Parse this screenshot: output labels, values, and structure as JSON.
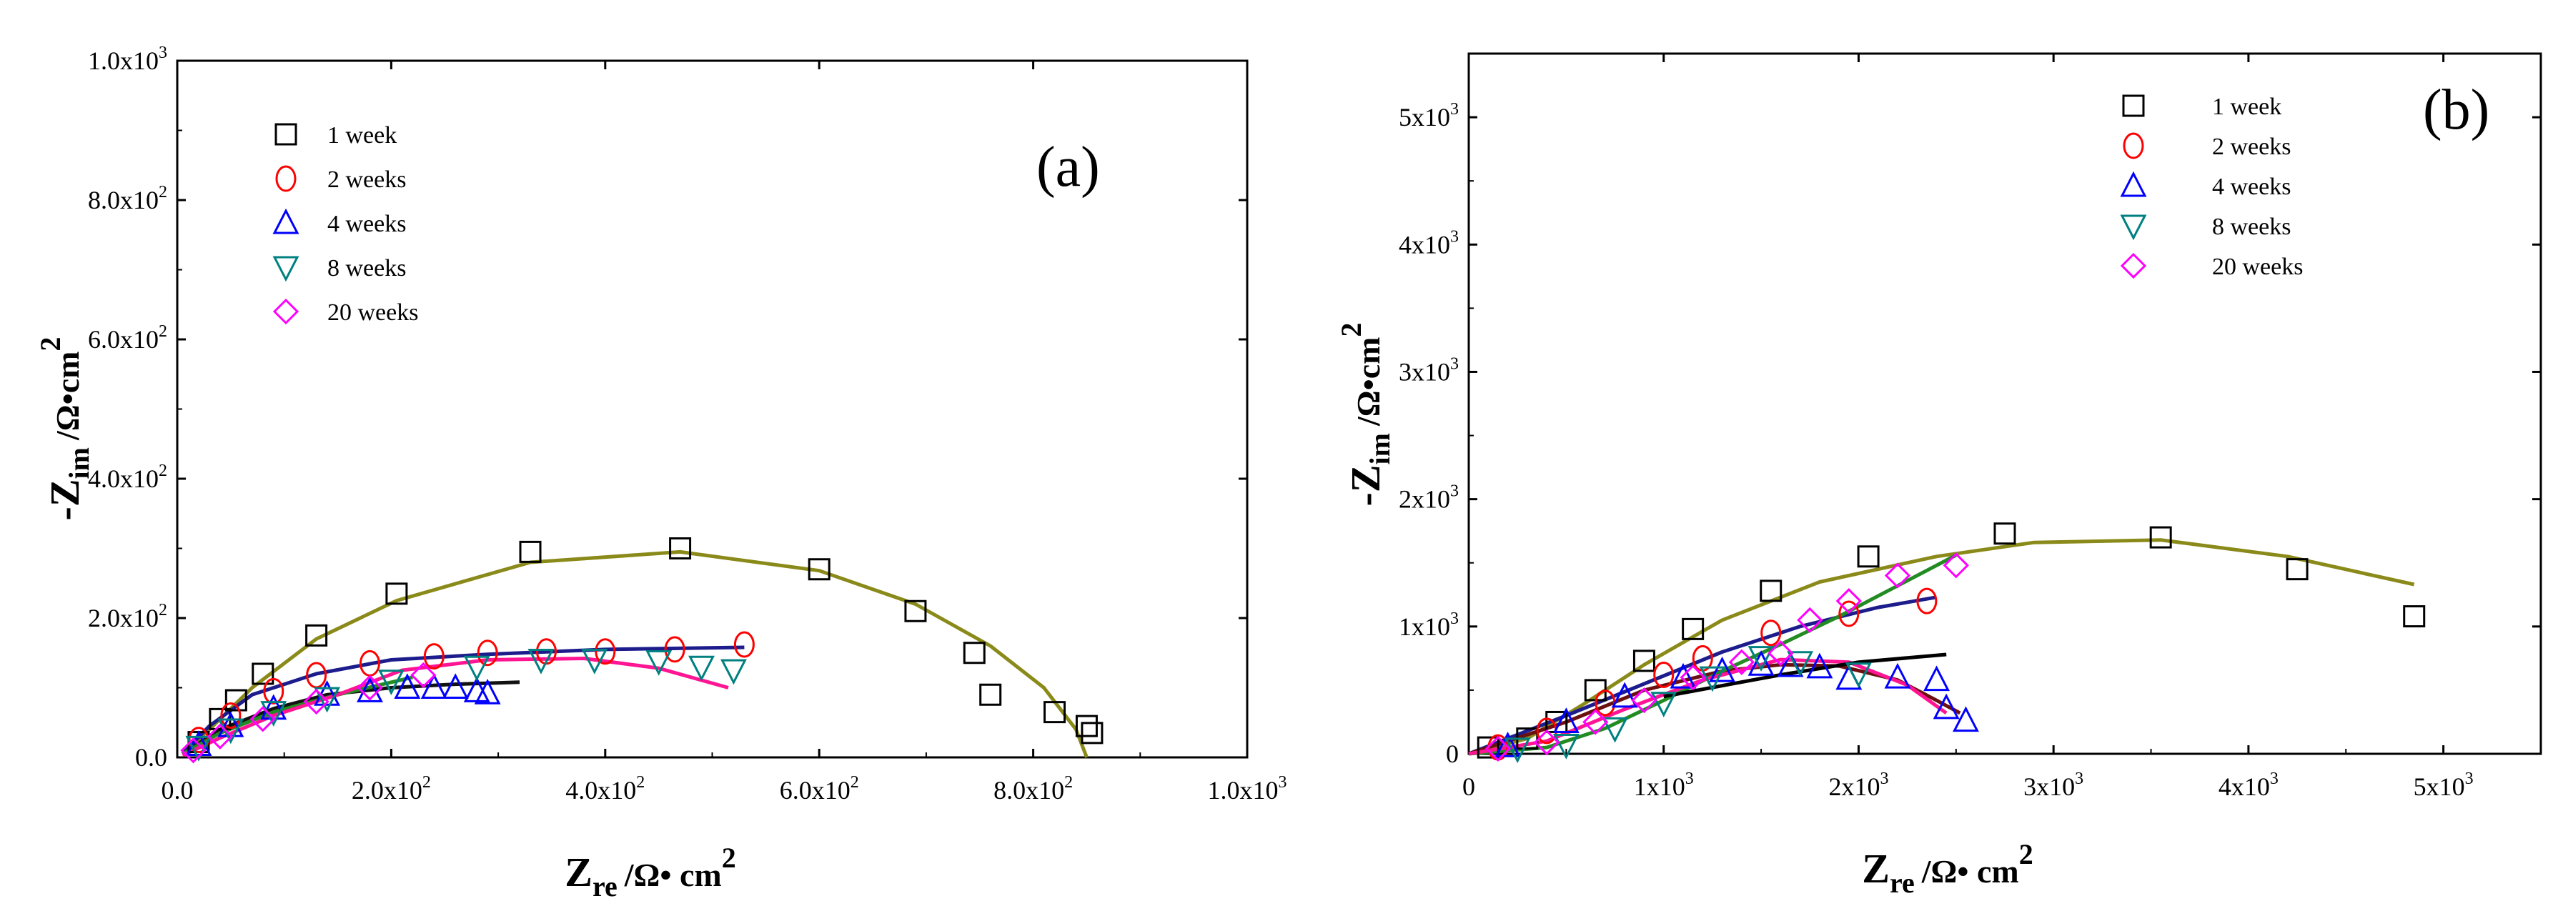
{
  "chart_data": [
    {
      "type": "scatter",
      "panel_label": "(a)",
      "xlabel": {
        "main": "Z",
        "sub": "re",
        "unit": "/Ω• cm",
        "sup": "2"
      },
      "ylabel": {
        "main": "-Z",
        "sub": "im",
        "unit": "/Ω•cm",
        "sup": "2"
      },
      "xlim": [
        0,
        1000
      ],
      "ylim": [
        0,
        1000
      ],
      "x_ticks": [
        {
          "value": 0,
          "mant": "0.0",
          "exp": ""
        },
        {
          "value": 200,
          "mant": "2.0x10",
          "exp": "2"
        },
        {
          "value": 400,
          "mant": "4.0x10",
          "exp": "2"
        },
        {
          "value": 600,
          "mant": "6.0x10",
          "exp": "2"
        },
        {
          "value": 800,
          "mant": "8.0x10",
          "exp": "2"
        },
        {
          "value": 1000,
          "mant": "1.0x10",
          "exp": "3"
        }
      ],
      "y_ticks": [
        {
          "value": 0,
          "mant": "0.0",
          "exp": ""
        },
        {
          "value": 200,
          "mant": "2.0x10",
          "exp": "2"
        },
        {
          "value": 400,
          "mant": "4.0x10",
          "exp": "2"
        },
        {
          "value": 600,
          "mant": "6.0x10",
          "exp": "2"
        },
        {
          "value": 800,
          "mant": "8.0x10",
          "exp": "2"
        },
        {
          "value": 1000,
          "mant": "1.0x10",
          "exp": "3"
        }
      ],
      "legend_position": "top-left",
      "series": [
        {
          "name": "1 week",
          "marker": "square",
          "color": "#000000",
          "line_color": "#8a8a1a",
          "points": [
            [
              20,
              22
            ],
            [
              40,
              55
            ],
            [
              55,
              82
            ],
            [
              80,
              120
            ],
            [
              130,
              175
            ],
            [
              205,
              235
            ],
            [
              330,
              295
            ],
            [
              470,
              300
            ],
            [
              600,
              270
            ],
            [
              690,
              210
            ],
            [
              745,
              150
            ],
            [
              760,
              90
            ],
            [
              820,
              65
            ],
            [
              850,
              45
            ],
            [
              855,
              35
            ]
          ],
          "fit": [
            [
              5,
              5
            ],
            [
              30,
              40
            ],
            [
              70,
              100
            ],
            [
              130,
              170
            ],
            [
              205,
              225
            ],
            [
              330,
              280
            ],
            [
              470,
              295
            ],
            [
              600,
              268
            ],
            [
              690,
              220
            ],
            [
              760,
              160
            ],
            [
              810,
              100
            ],
            [
              840,
              40
            ],
            [
              850,
              0
            ]
          ]
        },
        {
          "name": "2 weeks",
          "marker": "circle",
          "color": "#ff0000",
          "line_color": "#1c1c8c",
          "points": [
            [
              20,
              25
            ],
            [
              50,
              60
            ],
            [
              90,
              95
            ],
            [
              130,
              118
            ],
            [
              180,
              135
            ],
            [
              240,
              145
            ],
            [
              290,
              150
            ],
            [
              345,
              152
            ],
            [
              400,
              152
            ],
            [
              465,
              155
            ],
            [
              530,
              162
            ]
          ],
          "fit": [
            [
              5,
              5
            ],
            [
              30,
              45
            ],
            [
              70,
              90
            ],
            [
              130,
              120
            ],
            [
              200,
              140
            ],
            [
              290,
              148
            ],
            [
              400,
              155
            ],
            [
              530,
              158
            ]
          ]
        },
        {
          "name": "4 weeks",
          "marker": "triangle-up",
          "color": "#0000ff",
          "line_color": "#111111",
          "points": [
            [
              20,
              18
            ],
            [
              50,
              45
            ],
            [
              90,
              70
            ],
            [
              140,
              90
            ],
            [
              180,
              95
            ],
            [
              215,
              100
            ],
            [
              240,
              100
            ],
            [
              260,
              100
            ],
            [
              280,
              95
            ],
            [
              290,
              92
            ]
          ],
          "fit": [
            [
              5,
              5
            ],
            [
              40,
              40
            ],
            [
              90,
              70
            ],
            [
              140,
              90
            ],
            [
              200,
              100
            ],
            [
              260,
              105
            ],
            [
              320,
              108
            ]
          ]
        },
        {
          "name": "8 weeks",
          "marker": "triangle-down",
          "color": "#008080",
          "line_color": "#228b22",
          "points": [
            [
              20,
              15
            ],
            [
              50,
              40
            ],
            [
              90,
              65
            ],
            [
              140,
              85
            ],
            [
              200,
              110
            ],
            [
              280,
              130
            ],
            [
              340,
              140
            ],
            [
              390,
              140
            ],
            [
              450,
              138
            ],
            [
              490,
              130
            ],
            [
              520,
              125
            ]
          ],
          "fit": [
            [
              5,
              5
            ],
            [
              40,
              35
            ],
            [
              90,
              65
            ],
            [
              150,
              90
            ],
            [
              220,
              115
            ]
          ]
        },
        {
          "name": "20 weeks",
          "marker": "diamond",
          "color": "#ff00ff",
          "line_color": "#ff1493",
          "points": [
            [
              15,
              10
            ],
            [
              40,
              30
            ],
            [
              80,
              55
            ],
            [
              130,
              80
            ],
            [
              180,
              100
            ],
            [
              230,
              118
            ]
          ],
          "fit": [
            [
              5,
              3
            ],
            [
              40,
              28
            ],
            [
              90,
              60
            ],
            [
              150,
              90
            ],
            [
              210,
              125
            ],
            [
              290,
              140
            ],
            [
              380,
              142
            ],
            [
              450,
              128
            ],
            [
              515,
              100
            ]
          ]
        }
      ]
    },
    {
      "type": "scatter",
      "panel_label": "(b)",
      "xlabel": {
        "main": "Z",
        "sub": "re",
        "unit": "/Ω• cm",
        "sup": "2"
      },
      "ylabel": {
        "main": "-Z",
        "sub": "im",
        "unit": "/Ω•cm",
        "sup": "2"
      },
      "xlim": [
        0,
        5500
      ],
      "ylim": [
        0,
        5500
      ],
      "x_ticks": [
        {
          "value": 0,
          "mant": "0",
          "exp": ""
        },
        {
          "value": 1000,
          "mant": "1x10",
          "exp": "3"
        },
        {
          "value": 2000,
          "mant": "2x10",
          "exp": "3"
        },
        {
          "value": 3000,
          "mant": "3x10",
          "exp": "3"
        },
        {
          "value": 4000,
          "mant": "4x10",
          "exp": "3"
        },
        {
          "value": 5000,
          "mant": "5x10",
          "exp": "3"
        }
      ],
      "y_ticks": [
        {
          "value": 0,
          "mant": "0",
          "exp": ""
        },
        {
          "value": 1000,
          "mant": "1x10",
          "exp": "3"
        },
        {
          "value": 2000,
          "mant": "2x10",
          "exp": "3"
        },
        {
          "value": 3000,
          "mant": "3x10",
          "exp": "3"
        },
        {
          "value": 4000,
          "mant": "4x10",
          "exp": "3"
        },
        {
          "value": 5000,
          "mant": "5x10",
          "exp": "3"
        }
      ],
      "legend_position": "top-right",
      "series": [
        {
          "name": "1 week",
          "marker": "square",
          "color": "#000000",
          "line_color": "#8a8a1a",
          "points": [
            [
              100,
              50
            ],
            [
              300,
              120
            ],
            [
              450,
              250
            ],
            [
              650,
              500
            ],
            [
              900,
              730
            ],
            [
              1150,
              980
            ],
            [
              1550,
              1280
            ],
            [
              2050,
              1550
            ],
            [
              2750,
              1730
            ],
            [
              3550,
              1700
            ],
            [
              4250,
              1450
            ],
            [
              4850,
              1080
            ]
          ],
          "fit": [
            [
              0,
              0
            ],
            [
              300,
              120
            ],
            [
              600,
              400
            ],
            [
              900,
              700
            ],
            [
              1300,
              1050
            ],
            [
              1800,
              1350
            ],
            [
              2400,
              1550
            ],
            [
              2900,
              1660
            ],
            [
              3550,
              1680
            ],
            [
              4200,
              1550
            ],
            [
              4850,
              1330
            ]
          ]
        },
        {
          "name": "2 weeks",
          "marker": "circle",
          "color": "#ff0000",
          "line_color": "#1c1c8c",
          "points": [
            [
              150,
              50
            ],
            [
              400,
              180
            ],
            [
              700,
              400
            ],
            [
              1000,
              620
            ],
            [
              1200,
              750
            ],
            [
              1550,
              950
            ],
            [
              1950,
              1100
            ],
            [
              2350,
              1200
            ]
          ],
          "fit": [
            [
              0,
              0
            ],
            [
              500,
              300
            ],
            [
              900,
              550
            ],
            [
              1300,
              800
            ],
            [
              1700,
              1000
            ],
            [
              2100,
              1150
            ],
            [
              2400,
              1230
            ]
          ]
        },
        {
          "name": "4 weeks",
          "marker": "triangle-up",
          "color": "#0000ff",
          "line_color": "#6b1010",
          "points": [
            [
              200,
              60
            ],
            [
              500,
              250
            ],
            [
              800,
              450
            ],
            [
              1100,
              600
            ],
            [
              1300,
              650
            ],
            [
              1500,
              700
            ],
            [
              1650,
              690
            ],
            [
              1800,
              680
            ],
            [
              1950,
              590
            ],
            [
              2200,
              600
            ],
            [
              2400,
              580
            ],
            [
              2450,
              360
            ],
            [
              2550,
              260
            ]
          ],
          "fit": [
            [
              0,
              0
            ],
            [
              500,
              250
            ],
            [
              900,
              500
            ],
            [
              1300,
              650
            ],
            [
              1600,
              700
            ],
            [
              1900,
              690
            ],
            [
              2200,
              580
            ],
            [
              2400,
              420
            ],
            [
              2520,
              320
            ]
          ]
        },
        {
          "name": "8 weeks",
          "marker": "triangle-down",
          "color": "#008080",
          "line_color": "#228b22",
          "points": [
            [
              250,
              40
            ],
            [
              500,
              70
            ],
            [
              750,
              200
            ],
            [
              1000,
              400
            ],
            [
              1250,
              600
            ],
            [
              1500,
              760
            ],
            [
              1700,
              720
            ],
            [
              2000,
              630
            ]
          ],
          "fit": [
            [
              0,
              0
            ],
            [
              400,
              50
            ],
            [
              700,
              200
            ],
            [
              1000,
              420
            ],
            [
              1300,
              650
            ],
            [
              1600,
              860
            ],
            [
              1900,
              1080
            ],
            [
              2200,
              1320
            ],
            [
              2500,
              1560
            ]
          ]
        },
        {
          "name": "20 weeks",
          "marker": "diamond",
          "color": "#ff00ff",
          "line_color": "#ff1493",
          "points": [
            [
              150,
              40
            ],
            [
              400,
              90
            ],
            [
              650,
              250
            ],
            [
              900,
              420
            ],
            [
              1150,
              600
            ],
            [
              1400,
              720
            ],
            [
              1600,
              790
            ],
            [
              1750,
              1050
            ],
            [
              1950,
              1200
            ],
            [
              2200,
              1400
            ],
            [
              2500,
              1480
            ]
          ],
          "fit": [
            [
              0,
              0
            ],
            [
              400,
              100
            ],
            [
              800,
              350
            ],
            [
              1200,
              580
            ],
            [
              1600,
              740
            ],
            [
              1950,
              720
            ],
            [
              2250,
              540
            ],
            [
              2450,
              320
            ]
          ]
        },
        {
          "name": "",
          "marker": "none",
          "color": "#000000",
          "line_color": "#000000",
          "points": [],
          "fit": [
            [
              1000,
              450
            ],
            [
              1600,
              620
            ],
            [
              2000,
              720
            ],
            [
              2450,
              780
            ]
          ]
        }
      ]
    }
  ]
}
